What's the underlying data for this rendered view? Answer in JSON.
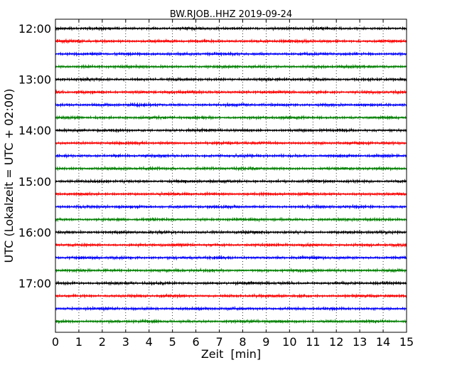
{
  "chart_data": {
    "type": "line",
    "title": "BW.RJOB..HHZ 2019-09-24",
    "xlabel": "Zeit  [min]",
    "ylabel": "UTC (Lokalzeit = UTC + 02:00)",
    "xlim": [
      0,
      15
    ],
    "x_ticks": [
      "0",
      "1",
      "2",
      "3",
      "4",
      "5",
      "6",
      "7",
      "8",
      "9",
      "10",
      "11",
      "12",
      "13",
      "14",
      "15"
    ],
    "y_tick_labels": [
      "12:00",
      "13:00",
      "14:00",
      "15:00",
      "16:00",
      "17:00"
    ],
    "grid": "vertical-dotted",
    "traces": 24,
    "trace_minutes": 15,
    "trace_colors": [
      "#000000",
      "#ff0000",
      "#0000ff",
      "#008000"
    ]
  }
}
